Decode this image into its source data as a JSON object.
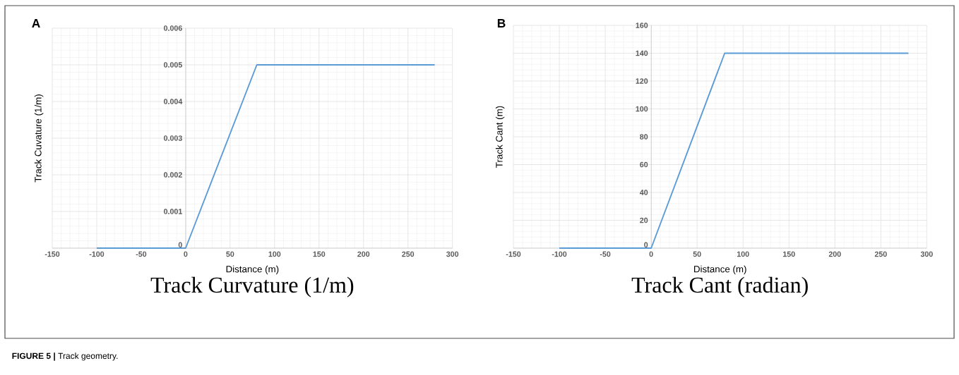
{
  "chart_data": [
    {
      "type": "line",
      "title": "Track Curvature (1/m)",
      "xlabel": "Distance (m)",
      "ylabel": "Track Cuvature (1/m)",
      "annotations": [
        "A",
        "**FIGURE 5 |** Track geometry."
      ],
      "x": [
        -100,
        0,
        80,
        280
      ],
      "series": [
        {
          "color": "#5b9bd5",
          "values": [
            0,
            0,
            0.005,
            0.005
          ]
        }
      ],
      "xlim": [
        -150,
        300
      ],
      "xticks": [
        -150,
        -100,
        -50,
        0,
        50,
        100,
        150,
        200,
        250,
        300
      ],
      "ylim": [
        0,
        0.006
      ],
      "yticks": [
        0,
        0.001,
        0.002,
        0.003,
        0.004,
        0.005,
        0.006
      ],
      "grid": true
    },
    {
      "type": "line",
      "title": "Track Cant (radian)",
      "xlabel": "Distance (m)",
      "ylabel": "Track Cant (m)",
      "annotations": [
        "B"
      ],
      "x": [
        -100,
        0,
        80,
        280
      ],
      "series": [
        {
          "color": "#5b9bd5",
          "values": [
            0,
            0,
            140,
            140
          ]
        }
      ],
      "xlim": [
        -150,
        300
      ],
      "xticks": [
        -150,
        -100,
        -50,
        0,
        50,
        100,
        150,
        200,
        250,
        300
      ],
      "ylim": [
        0,
        160
      ],
      "yticks": [
        0,
        20,
        40,
        60,
        80,
        100,
        120,
        140,
        160
      ],
      "grid": true
    }
  ]
}
